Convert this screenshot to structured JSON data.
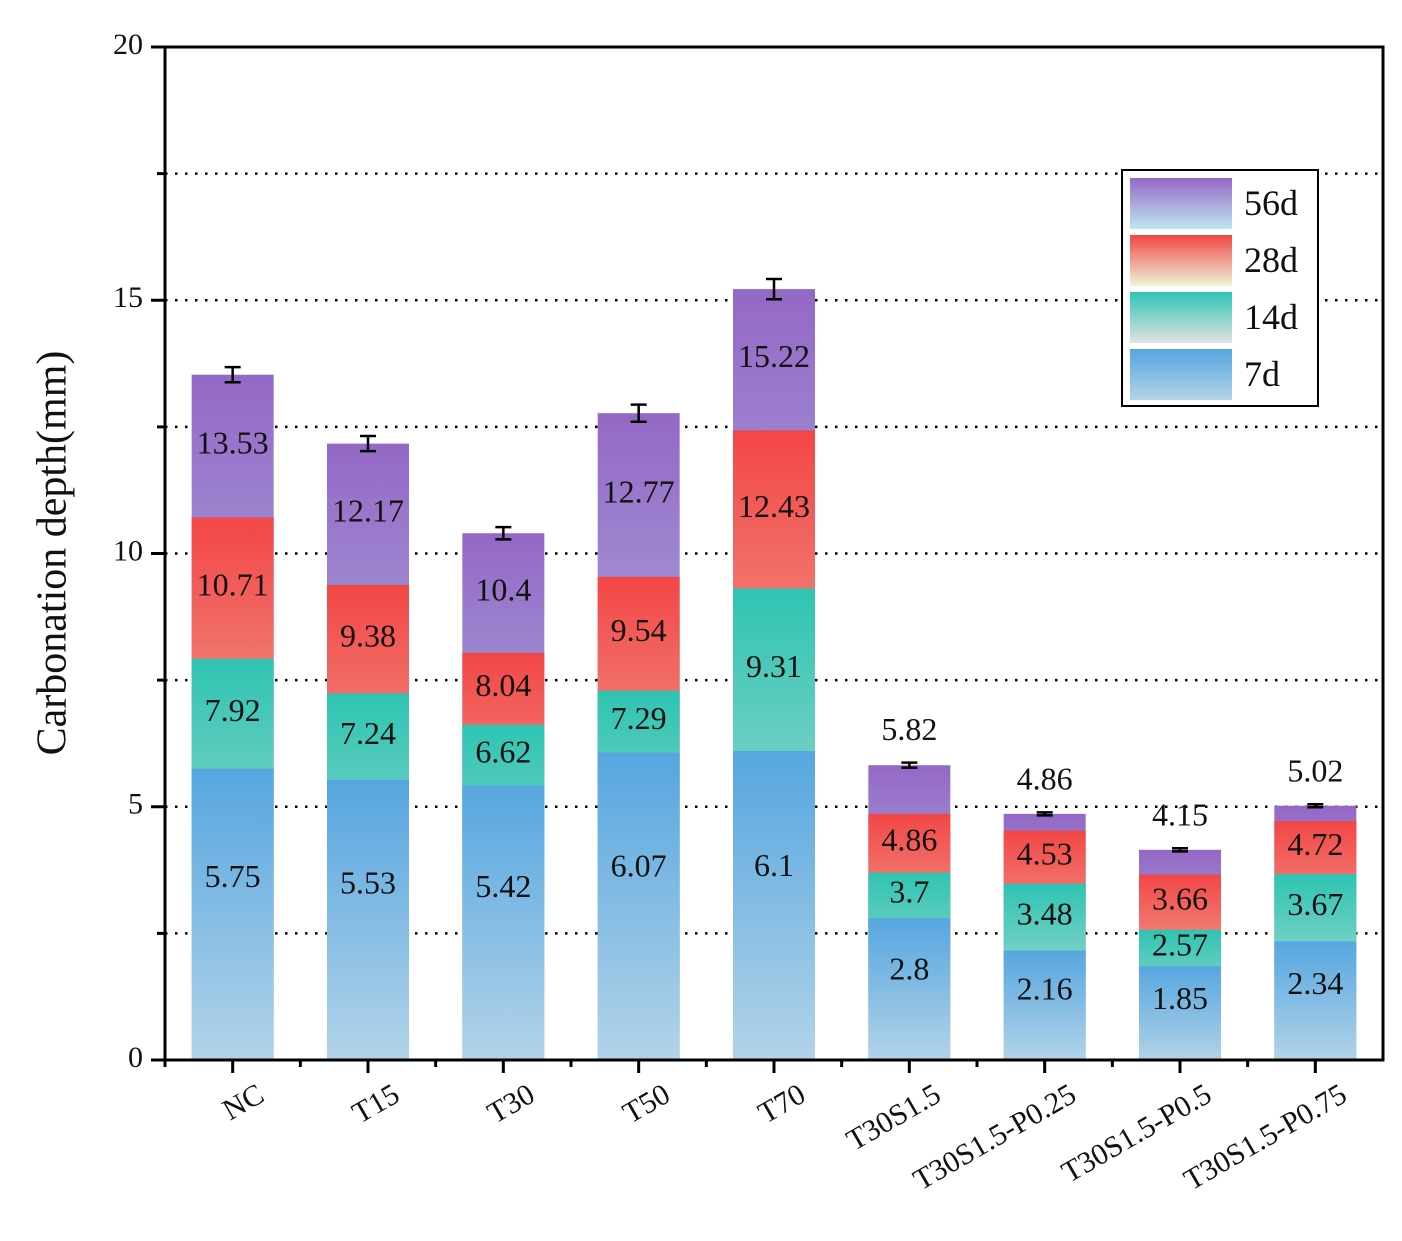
{
  "chart_data": {
    "type": "overlapping_bar",
    "y_label": "Carbonation depth(mm)",
    "categories": [
      "NC",
      "T15",
      "T30",
      "T50",
      "T70",
      "T30S1.5",
      "T30S1.5-P0.25",
      "T30S1.5-P0.5",
      "T30S1.5-P0.75"
    ],
    "series": [
      {
        "name": "7d",
        "color": [
          "#56a6e0",
          "#b2d3e8"
        ],
        "values": [
          5.75,
          5.53,
          5.42,
          6.07,
          6.1,
          2.8,
          2.16,
          1.85,
          2.34
        ]
      },
      {
        "name": "14d",
        "color": [
          "#2ec4b2",
          "#e2e2e2"
        ],
        "values": [
          7.92,
          7.24,
          6.62,
          7.29,
          9.31,
          3.7,
          3.48,
          2.57,
          3.67
        ]
      },
      {
        "name": "28d",
        "color": [
          "#f24646",
          "#eef5d8"
        ],
        "values": [
          10.71,
          9.38,
          8.04,
          9.54,
          12.43,
          4.86,
          4.53,
          3.66,
          4.72
        ]
      },
      {
        "name": "56d",
        "color": [
          "#9468c6",
          "#bde8ef"
        ],
        "values": [
          13.53,
          12.17,
          10.4,
          12.77,
          15.22,
          5.82,
          4.86,
          4.15,
          5.02
        ],
        "errors": [
          0.15,
          0.15,
          0.12,
          0.17,
          0.2,
          0.05,
          0.03,
          0.03,
          0.03
        ]
      }
    ],
    "ylim": [
      0,
      20
    ],
    "yticks": [
      0,
      5,
      10,
      15,
      20
    ],
    "yminor": [
      2.5,
      7.5,
      12.5,
      17.5
    ],
    "grid": true,
    "legend": "upper right"
  }
}
